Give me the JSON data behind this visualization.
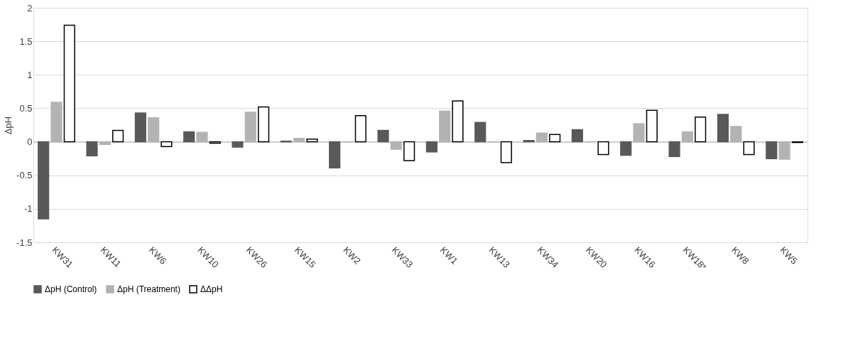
{
  "chart_data": {
    "type": "bar",
    "ylabel": "ΔpH",
    "categories": [
      "KW31",
      "KW11",
      "KW6",
      "KW10",
      "KW26",
      "KW15",
      "KW2",
      "KW33",
      "KW1",
      "KW13",
      "KW34",
      "KW20",
      "KW16",
      "KW18*",
      "KW8",
      "KW5"
    ],
    "series": [
      {
        "name": "ΔpH (Control)",
        "color": "#595959",
        "values": [
          -1.15,
          -0.21,
          0.43,
          0.15,
          -0.08,
          0.01,
          -0.39,
          0.17,
          -0.15,
          0.29,
          0.02,
          0.18,
          -0.2,
          -0.22,
          0.41,
          -0.25
        ]
      },
      {
        "name": "ΔpH (Treatment)",
        "color": "#b3b3b3",
        "values": [
          0.59,
          -0.04,
          0.36,
          0.14,
          0.44,
          0.05,
          0,
          -0.11,
          0.46,
          0,
          0.13,
          0,
          0.27,
          0.15,
          0.23,
          -0.26
        ]
      },
      {
        "name": "ΔΔpH",
        "color": "#ffffff",
        "values": [
          1.74,
          0.17,
          -0.07,
          -0.02,
          0.52,
          0.04,
          0.39,
          -0.28,
          0.61,
          -0.31,
          0.11,
          -0.19,
          0.47,
          0.37,
          -0.19,
          -0.01
        ]
      }
    ],
    "ylim": [
      -1.5,
      2
    ],
    "yticks": [
      -1.5,
      {
        "value": -1,
        "label": "-1"
      },
      -0.5,
      {
        "value": 0,
        "label": "0"
      },
      0.5,
      {
        "value": 1,
        "label": "1"
      },
      1.5,
      {
        "value": 2,
        "label": "2"
      }
    ],
    "grid": "y",
    "legend": "bottom"
  }
}
